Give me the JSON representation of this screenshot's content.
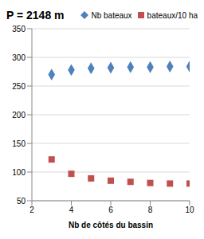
{
  "chart_data": {
    "type": "scatter",
    "title": "P = 2148 m",
    "x_label": "Nb de côtés du bassin",
    "x": [
      3,
      4,
      5,
      6,
      7,
      8,
      9,
      10
    ],
    "series": [
      {
        "name": "Nb bateaux",
        "color": "#4F81BD",
        "marker": "diamond",
        "values": [
          270,
          278,
          281,
          282,
          283,
          283,
          284,
          284
        ]
      },
      {
        "name": "bateaux/10 ha",
        "color": "#C0504D",
        "marker": "square",
        "values": [
          122,
          97,
          89,
          85,
          83,
          81,
          80,
          80
        ]
      }
    ],
    "xlim": [
      2,
      10
    ],
    "xticks": [
      2,
      4,
      6,
      8,
      10
    ],
    "ylim": [
      50,
      350
    ],
    "yticks": [
      50,
      100,
      150,
      200,
      250,
      300,
      350
    ],
    "grid": true,
    "legend": "top right"
  }
}
